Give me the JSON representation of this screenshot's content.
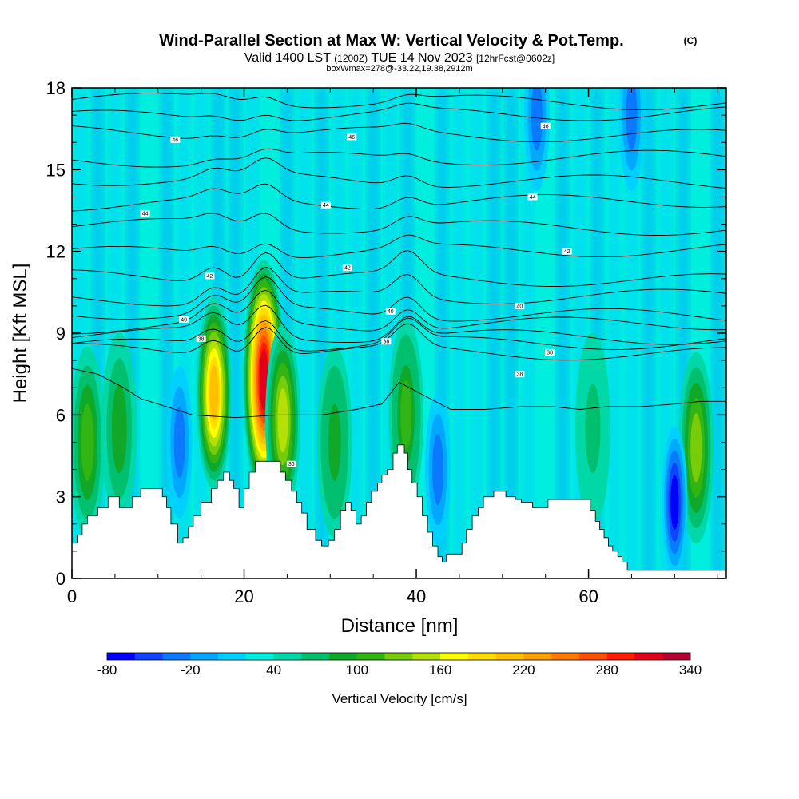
{
  "header": {
    "title_main": "Wind-Parallel Section at Max W: Vertical Velocity & Pot.Temp.",
    "title_mark": "(C)",
    "sub_a": "Valid 1400 LST ",
    "sub_b": "(1200Z)",
    "sub_c": " TUE 14 Nov 2023 ",
    "sub_d": "[12hrFcst@0602z]",
    "info": "boxWmax=278@-33.22,19.38,2912m"
  },
  "chart_data": {
    "type": "heatmap",
    "xlabel": "Distance [nm]",
    "ylabel": "Height [Kft MSL]",
    "xlim": [
      0,
      76
    ],
    "ylim": [
      0,
      18
    ],
    "x_ticks": [
      0,
      20,
      40,
      60
    ],
    "y_ticks": [
      0,
      3,
      6,
      9,
      12,
      15,
      18
    ],
    "colorbar": {
      "label": "Vertical Velocity [cm/s]",
      "min": -80,
      "max": 340,
      "step": 20,
      "tick_labels": [
        "-80",
        "-20",
        "40",
        "100",
        "160",
        "220",
        "280",
        "340"
      ],
      "colors": [
        "#0000ff",
        "#1144ff",
        "#0a78ff",
        "#00a8ff",
        "#00d0ff",
        "#00eedd",
        "#00d8a8",
        "#00c070",
        "#10a828",
        "#32b412",
        "#78cc0a",
        "#b4e006",
        "#ffff00",
        "#ffdc00",
        "#ffbe00",
        "#ffa000",
        "#ff7a00",
        "#ff5000",
        "#ff1e00",
        "#e0001e",
        "#b40030"
      ]
    },
    "vertical_velocity_features": [
      {
        "x": 1.8,
        "z": 5.0,
        "w": 110
      },
      {
        "x": 5.5,
        "z": 5.5,
        "w": 90
      },
      {
        "x": 16.5,
        "z": 6.8,
        "w": 200
      },
      {
        "x": 22.3,
        "z": 7.3,
        "w": 300
      },
      {
        "x": 24.5,
        "z": 5.8,
        "w": 150
      },
      {
        "x": 30.5,
        "z": 5.0,
        "w": 95
      },
      {
        "x": 38.8,
        "z": 6.0,
        "w": 115
      },
      {
        "x": 60.5,
        "z": 5.5,
        "w": 75
      },
      {
        "x": 72.5,
        "z": 4.8,
        "w": 130
      },
      {
        "x": 12.5,
        "z": 5.0,
        "w": -30
      },
      {
        "x": 42.5,
        "z": 4.0,
        "w": -40
      },
      {
        "x": 70.0,
        "z": 2.8,
        "w": -70
      },
      {
        "x": 65.0,
        "z": 17.0,
        "w": -30
      },
      {
        "x": 54.0,
        "z": 17.0,
        "w": -25
      }
    ],
    "theta_contour_labels": [
      {
        "x": 12.0,
        "z": 16.1,
        "label": "46"
      },
      {
        "x": 32.5,
        "z": 16.2,
        "label": "46"
      },
      {
        "x": 55.0,
        "z": 16.6,
        "label": "46"
      },
      {
        "x": 8.5,
        "z": 13.4,
        "label": "44"
      },
      {
        "x": 29.5,
        "z": 13.7,
        "label": "44"
      },
      {
        "x": 53.5,
        "z": 14.0,
        "label": "44"
      },
      {
        "x": 57.5,
        "z": 12.0,
        "label": "42"
      },
      {
        "x": 16.0,
        "z": 11.1,
        "label": "42"
      },
      {
        "x": 32.0,
        "z": 11.4,
        "label": "42"
      },
      {
        "x": 52.0,
        "z": 10.0,
        "label": "40"
      },
      {
        "x": 13.0,
        "z": 9.5,
        "label": "40"
      },
      {
        "x": 37.0,
        "z": 9.8,
        "label": "40"
      },
      {
        "x": 15.0,
        "z": 8.8,
        "label": "38"
      },
      {
        "x": 36.5,
        "z": 8.7,
        "label": "38"
      },
      {
        "x": 55.5,
        "z": 8.3,
        "label": "38"
      },
      {
        "x": 52.0,
        "z": 7.5,
        "label": "38"
      },
      {
        "x": 25.5,
        "z": 4.2,
        "label": "36"
      }
    ],
    "terrain_profile": {
      "x": [
        0,
        0.6,
        1.2,
        1.8,
        3.0,
        4.2,
        5.5,
        7.0,
        8.0,
        10.5,
        11.0,
        11.5,
        12.3,
        12.9,
        13.5,
        14.1,
        15.0,
        16.2,
        16.9,
        17.6,
        18.3,
        18.8,
        19.4,
        20.0,
        20.6,
        21.3,
        24.2,
        24.8,
        25.5,
        26.1,
        26.7,
        27.3,
        28.3,
        29.0,
        29.8,
        30.5,
        31.2,
        31.8,
        32.4,
        33.0,
        33.6,
        34.2,
        34.8,
        35.5,
        36.0,
        36.6,
        37.3,
        37.8,
        38.6,
        39.0,
        39.5,
        40.1,
        40.7,
        41.3,
        41.9,
        42.5,
        43.0,
        43.5,
        45.3,
        45.8,
        46.5,
        47.2,
        47.8,
        49.0,
        50.4,
        51.5,
        52.2,
        53.5,
        55.3,
        58.5,
        60.2,
        60.8,
        61.3,
        61.8,
        62.3,
        62.8,
        63.4,
        63.9,
        64.5,
        66.0,
        66.8,
        67.3,
        67.9,
        69.0,
        71.0,
        74.0,
        76.0
      ],
      "z": [
        1.3,
        1.6,
        2.0,
        2.3,
        2.6,
        3.0,
        2.6,
        3.0,
        3.3,
        3.0,
        2.6,
        2.0,
        1.3,
        1.5,
        1.9,
        2.3,
        2.8,
        3.3,
        3.6,
        3.9,
        3.6,
        3.3,
        2.6,
        3.3,
        3.9,
        4.3,
        3.9,
        3.6,
        3.2,
        2.8,
        2.4,
        1.8,
        1.4,
        1.2,
        1.4,
        1.8,
        2.5,
        2.8,
        2.5,
        2.0,
        2.3,
        2.8,
        3.2,
        3.5,
        3.8,
        4.0,
        4.6,
        4.9,
        4.6,
        4.0,
        3.5,
        3.0,
        2.3,
        1.7,
        1.2,
        0.8,
        0.6,
        0.9,
        1.3,
        1.8,
        2.3,
        2.6,
        3.0,
        3.2,
        3.0,
        2.9,
        2.8,
        2.6,
        2.9,
        2.9,
        2.5,
        2.1,
        1.8,
        1.5,
        1.2,
        1.0,
        0.8,
        0.6,
        0.3,
        0.3,
        0.3,
        0.3,
        0.3,
        0.3,
        0.3,
        0.3,
        0.3
      ]
    }
  }
}
